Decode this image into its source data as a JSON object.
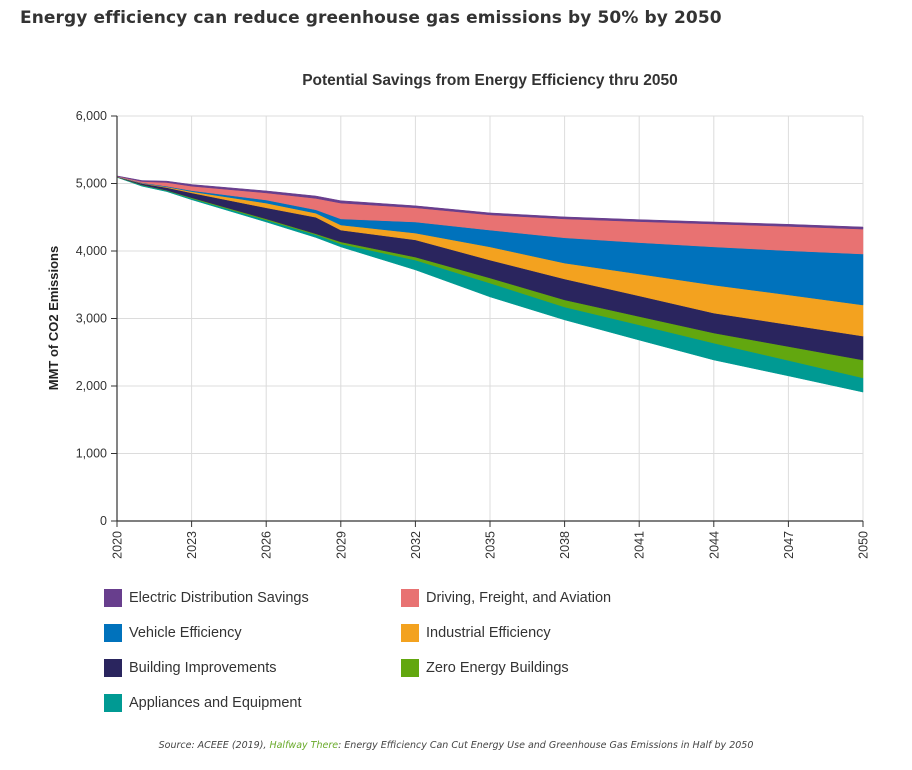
{
  "headline": "Energy efficiency can reduce greenhouse gas emissions by 50% by 2050",
  "source": {
    "prefix": "Source: ACEEE (2019), ",
    "link_text": "Halfway There",
    "suffix": ": Energy Efficiency Can Cut Energy Use and Greenhouse Gas Emissions in Half by 2050",
    "link_color": "#6aaa2b"
  },
  "chart_data": {
    "type": "area",
    "stacked": true,
    "title": "Potential Savings from Energy Efficiency thru 2050",
    "xlabel": "",
    "ylabel": "MMT of CO2 Emissions",
    "xlim": [
      2020,
      2050
    ],
    "ylim": [
      0,
      6000
    ],
    "x_ticks": [
      "2020",
      "2023",
      "2026",
      "2029",
      "2032",
      "2035",
      "2038",
      "2041",
      "2044",
      "2047",
      "2050"
    ],
    "y_ticks": [
      "0",
      "1,000",
      "2,000",
      "3,000",
      "4,000",
      "5,000",
      "6,000"
    ],
    "y_tick_values": [
      0,
      1000,
      2000,
      3000,
      4000,
      5000,
      6000
    ],
    "grid": true,
    "legend_position": "bottom",
    "x": [
      2020,
      2021,
      2022,
      2023,
      2026,
      2028,
      2029,
      2032,
      2035,
      2038,
      2041,
      2044,
      2047,
      2050
    ],
    "baseline_remaining_emissions": [
      5090,
      4960,
      4880,
      4760,
      4430,
      4200,
      4060,
      3720,
      3320,
      2980,
      2680,
      2385,
      2150,
      1910
    ],
    "series": [
      {
        "name": "Appliances and Equipment",
        "color": "#009a93",
        "top": [
          5095,
          4975,
          4895,
          4780,
          4460,
          4240,
          4105,
          3865,
          3525,
          3170,
          2905,
          2635,
          2380,
          2120
        ]
      },
      {
        "name": "Zero Energy Buildings",
        "color": "#62a70f",
        "top": [
          5097,
          4980,
          4900,
          4790,
          4475,
          4255,
          4135,
          3910,
          3600,
          3275,
          3030,
          2785,
          2585,
          2385
        ]
      },
      {
        "name": "Building Improvements",
        "color": "#2a255e",
        "top": [
          5100,
          5000,
          4940,
          4860,
          4640,
          4500,
          4310,
          4165,
          3865,
          3585,
          3335,
          3080,
          2910,
          2740
        ]
      },
      {
        "name": "Industrial Efficiency",
        "color": "#f3a21f",
        "top": [
          5102,
          5005,
          4950,
          4880,
          4710,
          4560,
          4385,
          4265,
          4060,
          3820,
          3660,
          3495,
          3350,
          3200
        ]
      },
      {
        "name": "Vehicle Efficiency",
        "color": "#0072bc",
        "top": [
          5104,
          5010,
          4960,
          4895,
          4755,
          4610,
          4475,
          4430,
          4310,
          4195,
          4125,
          4060,
          4005,
          3955
        ]
      },
      {
        "name": "Driving, Freight, and Aviation",
        "color": "#e87272",
        "top": [
          5108,
          5030,
          5015,
          4960,
          4860,
          4780,
          4710,
          4640,
          4535,
          4475,
          4435,
          4400,
          4365,
          4325
        ]
      },
      {
        "name": "Electric Distribution Savings",
        "color": "#683e8d",
        "top": [
          5112,
          5045,
          5035,
          4985,
          4890,
          4815,
          4745,
          4670,
          4565,
          4505,
          4465,
          4430,
          4395,
          4355
        ]
      }
    ],
    "legend": [
      {
        "name": "Electric Distribution Savings",
        "color": "#683e8d"
      },
      {
        "name": "Driving, Freight, and Aviation",
        "color": "#e87272"
      },
      {
        "name": "Vehicle Efficiency",
        "color": "#0072bc"
      },
      {
        "name": "Industrial Efficiency",
        "color": "#f3a21f"
      },
      {
        "name": "Building Improvements",
        "color": "#2a255e"
      },
      {
        "name": "Zero Energy Buildings",
        "color": "#62a70f"
      },
      {
        "name": "Appliances and Equipment",
        "color": "#009a93"
      }
    ]
  }
}
